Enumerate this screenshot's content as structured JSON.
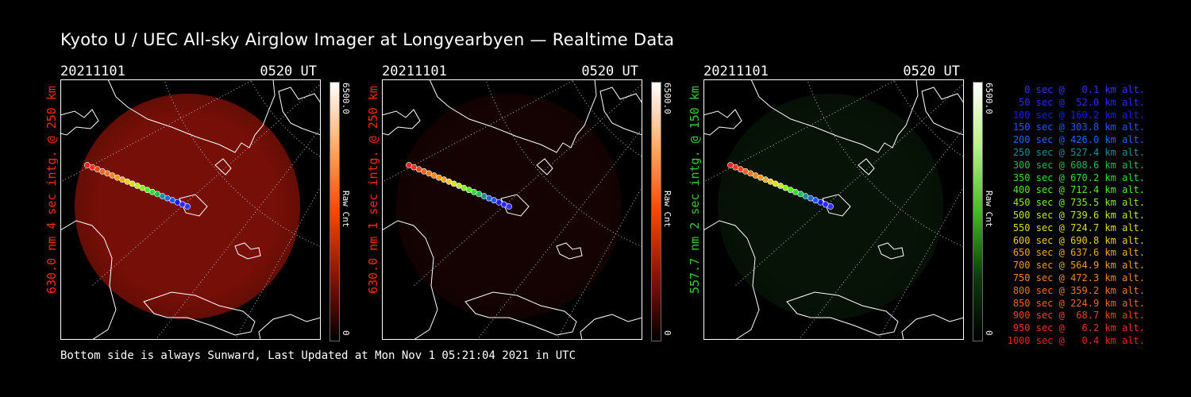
{
  "title": "Kyoto U / UEC All-sky Airglow Imager at Longyearbyen — Realtime Data",
  "footer": "Bottom side is always Sunward, Last Updated at Mon Nov  1 05:21:04 2021 in UTC",
  "panels": [
    {
      "date": "20211101",
      "time": "0520 UT",
      "side_label": "630.0 nm 4 sec intg. @ 250 km",
      "cbar_max": "6500.0",
      "cbar_min": "0",
      "cbar_label": "Raw Cnt",
      "color": "#ff2a00",
      "glow": "#8a1208",
      "glow_level": 0.85
    },
    {
      "date": "20211101",
      "time": "0520 UT",
      "side_label": "630.0 nm 1 sec intg. @ 250 km",
      "cbar_max": "6500.0",
      "cbar_min": "0",
      "cbar_label": "Raw Cnt",
      "color": "#ff2a00",
      "glow": "#3a0804",
      "glow_level": 0.35
    },
    {
      "date": "20211101",
      "time": "0520 UT",
      "side_label": "557.7 nm 2 sec intg. @ 150 km",
      "cbar_max": "6500.0",
      "cbar_min": "0",
      "cbar_label": "Raw Cnt",
      "color": "#33cc33",
      "glow": "#0f2a0f",
      "glow_level": 0.45
    }
  ],
  "legend": [
    {
      "text": "0 sec @   0.1 km alt.",
      "color": "#3333ff"
    },
    {
      "text": "50 sec @  52.0 km alt.",
      "color": "#2a2aff"
    },
    {
      "text": "100 sec @ 160.2 km alt.",
      "color": "#1a1aff"
    },
    {
      "text": "150 sec @ 303.8 km alt.",
      "color": "#2255ff"
    },
    {
      "text": "200 sec @ 426.0 km alt.",
      "color": "#2266ee"
    },
    {
      "text": "250 sec @ 527.4 km alt.",
      "color": "#1a8f9a"
    },
    {
      "text": "300 sec @ 608.6 km alt.",
      "color": "#22bb55"
    },
    {
      "text": "350 sec @ 670.2 km alt.",
      "color": "#33dd33"
    },
    {
      "text": "400 sec @ 712.4 km alt.",
      "color": "#55ee22"
    },
    {
      "text": "450 sec @ 735.5 km alt.",
      "color": "#88ee22"
    },
    {
      "text": "500 sec @ 739.6 km alt.",
      "color": "#bbee22"
    },
    {
      "text": "550 sec @ 724.7 km alt.",
      "color": "#dddd22"
    },
    {
      "text": "600 sec @ 690.8 km alt.",
      "color": "#eecc22"
    },
    {
      "text": "650 sec @ 637.6 km alt.",
      "color": "#eeaa22"
    },
    {
      "text": "700 sec @ 564.9 km alt.",
      "color": "#ee9922"
    },
    {
      "text": "750 sec @ 472.3 km alt.",
      "color": "#ee8822"
    },
    {
      "text": "800 sec @ 359.2 km alt.",
      "color": "#ee7722"
    },
    {
      "text": "850 sec @ 224.9 km alt.",
      "color": "#ee6622"
    },
    {
      "text": "900 sec @  68.7 km alt.",
      "color": "#ee4422"
    },
    {
      "text": "950 sec @   6.2 km alt.",
      "color": "#ee3322"
    },
    {
      "text": "1000 sec @   0.4 km alt.",
      "color": "#ee2222"
    }
  ]
}
